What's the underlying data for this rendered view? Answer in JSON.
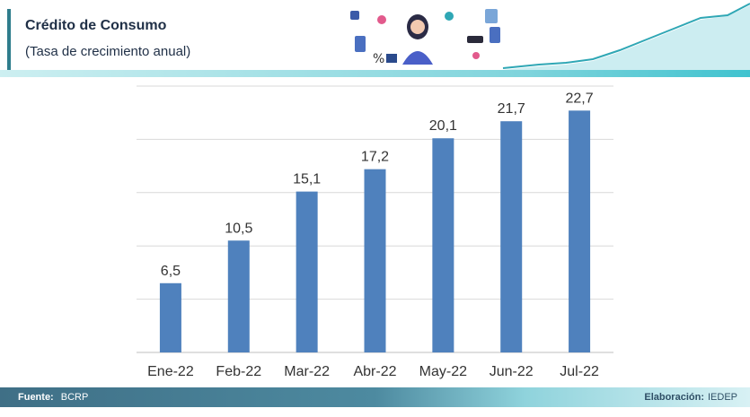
{
  "header": {
    "title": "Crédito de Consumo",
    "subtitle": "(Tasa de crecimiento anual)"
  },
  "footer": {
    "source_label": "Fuente:",
    "source_value": "BCRP",
    "credit_label": "Elaboración:",
    "credit_value": "IEDEP"
  },
  "colors": {
    "bar": "#4f81bd",
    "accent": "#2f7d8c",
    "teal": "#40c3cf"
  },
  "chart_data": {
    "type": "bar",
    "categories": [
      "Ene-22",
      "Feb-22",
      "Mar-22",
      "Abr-22",
      "May-22",
      "Jun-22",
      "Jul-22"
    ],
    "values": [
      6.5,
      10.5,
      15.1,
      17.2,
      20.1,
      21.7,
      22.7
    ],
    "value_labels": [
      "6,5",
      "10,5",
      "15,1",
      "17,2",
      "20,1",
      "21,7",
      "22,7"
    ],
    "ylim": [
      0,
      25
    ],
    "grid": true,
    "legend": "none"
  }
}
